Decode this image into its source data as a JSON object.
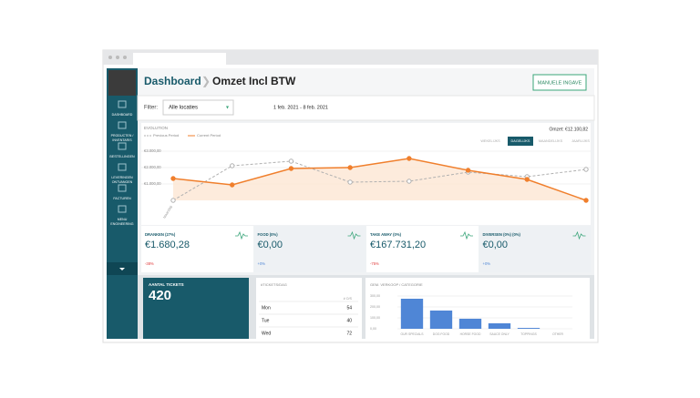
{
  "header": {
    "title": "Dashboard",
    "subtitle": "Omzet Incl BTW",
    "button": "MANUELE INGAVE"
  },
  "sidebar": [
    [
      "DASHBOARD"
    ],
    [
      "PRODUCTEN /",
      "INVENTARIS"
    ],
    [
      "BESTELLINGEN"
    ],
    [
      "LEVERINGEN",
      "ONTVANGEN"
    ],
    [
      "FACTUREN"
    ],
    [
      "MENU",
      "ENGINEERING"
    ]
  ],
  "filter": {
    "label": "Filter:",
    "location": "Alle locaties",
    "date_range": "1 feb. 2021 - 8 feb. 2021"
  },
  "chart_data": [
    {
      "type": "line",
      "title": "EVOLUTION",
      "total": "Omzet: €12.100,82",
      "tabs": [
        "WEKELIJKS",
        "DAGELIJKS",
        "MAANDELIJKS",
        "JAARLIJKS"
      ],
      "categories": [
        "Maandag",
        null,
        null,
        null,
        null,
        null,
        null,
        null
      ],
      "ylim": [
        0,
        3000
      ],
      "yticks": [
        {
          "value": 1000,
          "label": "€1.000,00"
        },
        {
          "value": 2000,
          "label": "€2.000,00"
        },
        {
          "value": 3000,
          "label": "€3.000,00"
        }
      ],
      "series": [
        {
          "name": "Previous Period",
          "color": "#b0b0b0",
          "values": [
            0,
            2111,
            2389,
            1111,
            1167,
            1722,
            1444,
            1889
          ]
        },
        {
          "name": "Current Period",
          "color": "#f07f2c",
          "values": [
            1333,
            944,
            1944,
            2000,
            2556,
            1833,
            1278,
            0
          ]
        }
      ]
    },
    {
      "type": "bar",
      "title": "GEM. VERKOOP / CATEGORIE",
      "color": "#4f86d6",
      "categories": [
        "OUR SPECIALS",
        "DOG FOOD",
        "HORSE FOOD",
        "SAUCE ONLY",
        "TOPPINGS",
        "OTHER"
      ],
      "values": [
        275,
        167,
        92,
        50,
        8,
        0
      ],
      "ylim": [
        0,
        300
      ],
      "yticks": [
        {
          "value": 0,
          "label": "0,00"
        },
        {
          "value": 100,
          "label": "100,00"
        },
        {
          "value": 200,
          "label": "200,00"
        },
        {
          "value": 300,
          "label": "300,00"
        }
      ]
    }
  ],
  "kpis": [
    {
      "label": "DRANKEN (27%)",
      "value": "€1.680,28",
      "change": "-38%"
    },
    {
      "label": "FOOD (0%)",
      "value": "€0,00",
      "change": "+0%"
    },
    {
      "label": "TAKE AWAY (0%)",
      "value": "€167.731,20",
      "change": "-75%"
    },
    {
      "label": "DIVERSEN (0%) (0%)",
      "value": "€0,00",
      "change": "+0%"
    }
  ],
  "tickets": {
    "label": "AANTAL TICKETS",
    "value": 420
  },
  "table": {
    "title": "#TICKETS/DAG",
    "column": "# O/S",
    "rows": [
      [
        "Mon",
        54
      ],
      [
        "Tue",
        40
      ],
      [
        "Wed",
        72
      ]
    ]
  }
}
